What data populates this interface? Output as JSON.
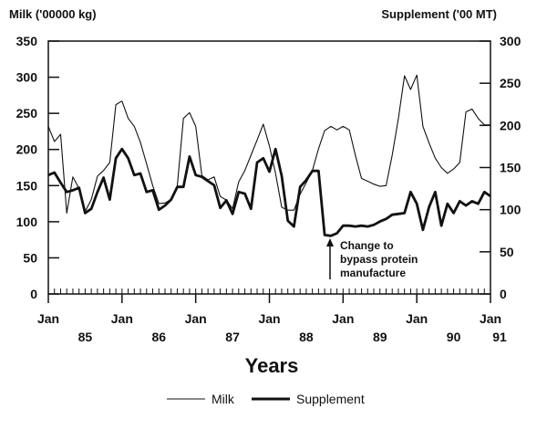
{
  "chart_data": {
    "type": "line",
    "title": "",
    "xlabel": "Years",
    "ylabel_left": "Milk ('00000 kg)",
    "ylabel_right": "Supplement ('00 MT)",
    "ylim_left": [
      0,
      350
    ],
    "ylim_right": [
      0,
      300
    ],
    "yticks_left": [
      0,
      50,
      100,
      150,
      200,
      250,
      300,
      350
    ],
    "yticks_right": [
      0,
      50,
      100,
      150,
      200,
      250,
      300
    ],
    "xrange": [
      "1985-01",
      "1991-01"
    ],
    "x_month_labels": [
      "Jan",
      "Jan",
      "Jan",
      "Jan",
      "Jan",
      "Jan",
      "Jan"
    ],
    "x_year_labels": [
      "85",
      "86",
      "87",
      "88",
      "89",
      "90",
      "91"
    ],
    "grid": false,
    "legend_placement": "bottom",
    "annotation": "Change to bypass protein manufacture",
    "annotation_lines": [
      "Change to",
      "bypass protein",
      "manufacture"
    ],
    "annotation_date": "1988-10",
    "series": [
      {
        "name": "Milk",
        "axis": "left",
        "color": "#111111",
        "values": [
          232,
          211,
          221,
          112,
          162,
          146,
          114,
          131,
          163,
          171,
          182,
          262,
          267,
          243,
          232,
          210,
          180,
          150,
          125,
          126,
          131,
          150,
          243,
          251,
          232,
          164,
          158,
          162,
          135,
          130,
          118,
          155,
          171,
          192,
          213,
          235,
          205,
          167,
          120,
          116,
          116,
          138,
          154,
          171,
          201,
          226,
          232,
          227,
          232,
          227,
          192,
          160,
          156,
          152,
          149,
          150,
          192,
          243,
          302,
          283,
          303,
          232,
          209,
          188,
          175,
          167,
          173,
          182,
          252,
          256,
          243,
          234,
          234
        ]
      },
      {
        "name": "Supplement",
        "axis": "right",
        "color": "#111111",
        "values": [
          141,
          144,
          132,
          121,
          123,
          126,
          96,
          101,
          121,
          138,
          112,
          161,
          172,
          161,
          141,
          143,
          121,
          123,
          100,
          105,
          112,
          127,
          127,
          163,
          141,
          139,
          134,
          129,
          102,
          111,
          95,
          121,
          119,
          101,
          156,
          161,
          145,
          172,
          140,
          87,
          80,
          127,
          135,
          146,
          146,
          70,
          69,
          72,
          81,
          81,
          80,
          81,
          80,
          82,
          86,
          89,
          94,
          95,
          96,
          121,
          107,
          76,
          103,
          121,
          81,
          107,
          96,
          110,
          105,
          110,
          107,
          121,
          116
        ]
      }
    ]
  }
}
